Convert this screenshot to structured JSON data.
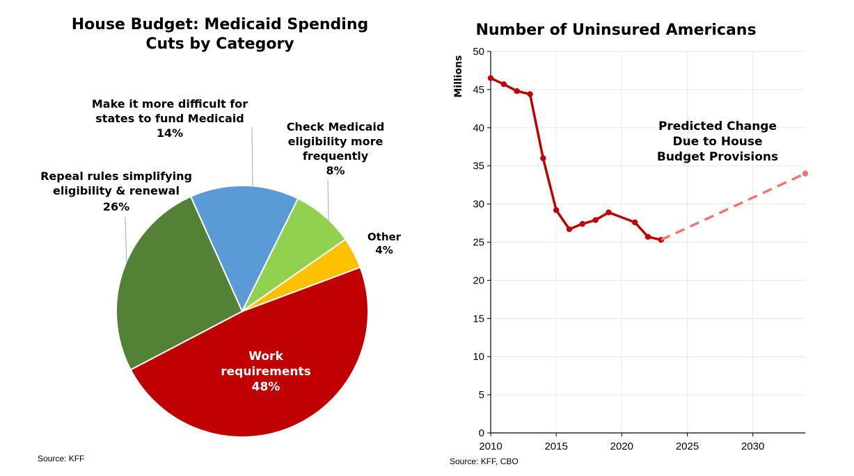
{
  "chart_data": [
    {
      "type": "pie",
      "title_lines": [
        "House Budget: Medicaid Spending",
        "Cuts by Category"
      ],
      "source": "Source: KFF",
      "slices": [
        {
          "label_lines": [
            "Work",
            "requirements"
          ],
          "pct_label": "48%",
          "value": 48,
          "color": "#c00000"
        },
        {
          "label_lines": [
            "Repeal rules simplifying",
            "eligibility & renewal"
          ],
          "pct_label": "26%",
          "value": 26,
          "color": "#538135"
        },
        {
          "label_lines": [
            "Make it more difficult for",
            "states to fund Medicaid"
          ],
          "pct_label": "14%",
          "value": 14,
          "color": "#5b9bd5"
        },
        {
          "label_lines": [
            "Check Medicaid",
            "eligibility more",
            "frequently"
          ],
          "pct_label": "8%",
          "value": 8,
          "color": "#92d050"
        },
        {
          "label_lines": [
            "Other"
          ],
          "pct_label": "4%",
          "value": 4,
          "color": "#ffc000"
        }
      ]
    },
    {
      "type": "line",
      "title": "Number of Uninsured Americans",
      "ylabel": "Millions",
      "source": "Source: KFF, CBO",
      "xlim": [
        2010,
        2034
      ],
      "ylim": [
        0,
        50
      ],
      "x_ticks": [
        2010,
        2015,
        2020,
        2025,
        2030
      ],
      "y_ticks": [
        0,
        5,
        10,
        15,
        20,
        25,
        30,
        35,
        40,
        45,
        50
      ],
      "grid": true,
      "series": [
        {
          "color": "#c00000",
          "style": "solid",
          "x": [
            2010,
            2011,
            2012,
            2013,
            2014,
            2015,
            2016,
            2017,
            2018,
            2019,
            2021,
            2022,
            2023
          ],
          "y": [
            46.5,
            45.7,
            44.8,
            44.4,
            36.0,
            29.2,
            26.7,
            27.4,
            27.9,
            28.9,
            27.6,
            25.7,
            25.3
          ]
        },
        {
          "color": "#f4736f",
          "style": "dashed",
          "x": [
            2023,
            2034
          ],
          "y": [
            25.3,
            34.0
          ]
        }
      ],
      "annotation": {
        "lines": [
          "Predicted Change",
          "Due to House",
          "Budget Provisions"
        ],
        "color": "#f4736f"
      }
    }
  ]
}
